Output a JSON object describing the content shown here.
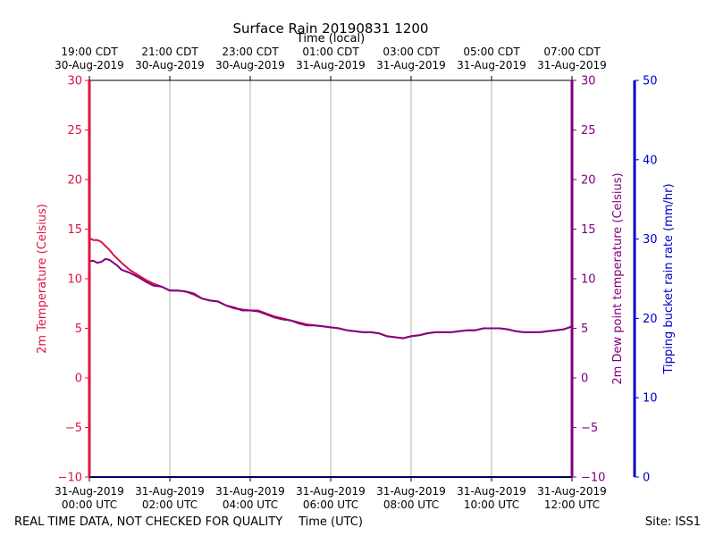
{
  "chart_data": {
    "type": "line",
    "title": "Surface Rain 20190831 1200",
    "top_axis_title": "Time (local)",
    "xlabel": "Time (UTC)",
    "ylabel_left": "2m Temperature (Celsius)",
    "ylabel_right_inner": "2m Dew point temperature (Celsius)",
    "ylabel_right_outer": "Tipping bucket rain rate (mm/hr)",
    "footer_left": "REAL TIME DATA, NOT CHECKED FOR QUALITY",
    "footer_right": "Site: ISS1",
    "xlim": [
      0,
      12
    ],
    "ylim": [
      -10,
      30
    ],
    "rain_ylim": [
      0,
      50
    ],
    "grid": "vertical",
    "y_ticks": [
      {
        "value": -10,
        "label": "−10"
      },
      {
        "value": -5,
        "label": "−5"
      },
      {
        "value": 0,
        "label": "0"
      },
      {
        "value": 5,
        "label": "5"
      },
      {
        "value": 10,
        "label": "10"
      },
      {
        "value": 15,
        "label": "15"
      },
      {
        "value": 20,
        "label": "20"
      },
      {
        "value": 25,
        "label": "25"
      },
      {
        "value": 30,
        "label": "30"
      }
    ],
    "rain_ticks": [
      {
        "value": 0,
        "label": "0"
      },
      {
        "value": 10,
        "label": "10"
      },
      {
        "value": 20,
        "label": "20"
      },
      {
        "value": 30,
        "label": "30"
      },
      {
        "value": 40,
        "label": "40"
      },
      {
        "value": 50,
        "label": "50"
      }
    ],
    "x_ticks_utc": [
      {
        "value": 0,
        "line1": "31-Aug-2019",
        "line2": "00:00 UTC"
      },
      {
        "value": 2,
        "line1": "31-Aug-2019",
        "line2": "02:00 UTC"
      },
      {
        "value": 4,
        "line1": "31-Aug-2019",
        "line2": "04:00 UTC"
      },
      {
        "value": 6,
        "line1": "31-Aug-2019",
        "line2": "06:00 UTC"
      },
      {
        "value": 8,
        "line1": "31-Aug-2019",
        "line2": "08:00 UTC"
      },
      {
        "value": 10,
        "line1": "31-Aug-2019",
        "line2": "10:00 UTC"
      },
      {
        "value": 12,
        "line1": "31-Aug-2019",
        "line2": "12:00 UTC"
      }
    ],
    "x_ticks_local": [
      {
        "value": 0,
        "line1": "19:00 CDT",
        "line2": "30-Aug-2019"
      },
      {
        "value": 2,
        "line1": "21:00 CDT",
        "line2": "30-Aug-2019"
      },
      {
        "value": 4,
        "line1": "23:00 CDT",
        "line2": "30-Aug-2019"
      },
      {
        "value": 6,
        "line1": "01:00 CDT",
        "line2": "31-Aug-2019"
      },
      {
        "value": 8,
        "line1": "03:00 CDT",
        "line2": "31-Aug-2019"
      },
      {
        "value": 10,
        "line1": "05:00 CDT",
        "line2": "31-Aug-2019"
      },
      {
        "value": 12,
        "line1": "07:00 CDT",
        "line2": "31-Aug-2019"
      }
    ],
    "series": [
      {
        "key": "temperature",
        "color": "#dc143c",
        "x": [
          0,
          0.1,
          0.2,
          0.3,
          0.4,
          0.5,
          0.6,
          0.7,
          0.8,
          1.0,
          1.2,
          1.4,
          1.6,
          1.8,
          2.0,
          2.2,
          2.4,
          2.6,
          2.8,
          3.0,
          3.2,
          3.4,
          3.6,
          3.8,
          4.0,
          4.2,
          4.4,
          4.6,
          4.8,
          5.0,
          5.2,
          5.4,
          5.6,
          5.8,
          6.0,
          6.2,
          6.4,
          6.6,
          6.8,
          7.0,
          7.2,
          7.4,
          7.6,
          7.8,
          8.0,
          8.2,
          8.4,
          8.6,
          8.8,
          9.0,
          9.2,
          9.4,
          9.6,
          9.8,
          10.0,
          10.2,
          10.4,
          10.6,
          10.8,
          11.0,
          11.2,
          11.4,
          11.6,
          11.8,
          12.0
        ],
        "values": [
          14.1,
          13.9,
          13.9,
          13.7,
          13.3,
          12.9,
          12.4,
          12.0,
          11.6,
          10.9,
          10.4,
          9.9,
          9.5,
          9.2,
          8.8,
          8.8,
          8.7,
          8.4,
          8.0,
          7.8,
          7.7,
          7.3,
          7.0,
          6.9,
          6.8,
          6.8,
          6.5,
          6.2,
          6.0,
          5.8,
          5.6,
          5.4,
          5.3,
          5.2,
          5.1,
          5.0,
          4.8,
          4.7,
          4.6,
          4.6,
          4.5,
          4.2,
          4.1,
          4.0,
          4.2,
          4.3,
          4.5,
          4.6,
          4.6,
          4.6,
          4.7,
          4.8,
          4.8,
          5.0,
          5.0,
          5.0,
          4.9,
          4.7,
          4.6,
          4.6,
          4.6,
          4.7,
          4.8,
          4.9,
          5.2
        ]
      },
      {
        "key": "dewpoint",
        "color": "#800080",
        "x": [
          0,
          0.1,
          0.2,
          0.3,
          0.4,
          0.5,
          0.6,
          0.7,
          0.8,
          1.0,
          1.2,
          1.4,
          1.6,
          1.8,
          2.0,
          2.2,
          2.4,
          2.6,
          2.8,
          3.0,
          3.2,
          3.4,
          3.6,
          3.8,
          4.0,
          4.2,
          4.4,
          4.6,
          4.8,
          5.0,
          5.2,
          5.4,
          5.6,
          5.8,
          6.0,
          6.2,
          6.4,
          6.6,
          6.8,
          7.0,
          7.2,
          7.4,
          7.6,
          7.8,
          8.0,
          8.2,
          8.4,
          8.6,
          8.8,
          9.0,
          9.2,
          9.4,
          9.6,
          9.8,
          10.0,
          10.2,
          10.4,
          10.6,
          10.8,
          11.0,
          11.2,
          11.4,
          11.6,
          11.8,
          12.0
        ],
        "values": [
          11.8,
          11.8,
          11.6,
          11.7,
          12.0,
          11.9,
          11.6,
          11.3,
          10.9,
          10.6,
          10.2,
          9.7,
          9.3,
          9.2,
          8.8,
          8.8,
          8.7,
          8.5,
          8.0,
          7.8,
          7.7,
          7.3,
          7.1,
          6.8,
          6.8,
          6.7,
          6.4,
          6.1,
          5.9,
          5.8,
          5.5,
          5.3,
          5.3,
          5.2,
          5.1,
          5.0,
          4.8,
          4.7,
          4.6,
          4.6,
          4.5,
          4.2,
          4.1,
          4.0,
          4.2,
          4.3,
          4.5,
          4.6,
          4.6,
          4.6,
          4.7,
          4.8,
          4.8,
          5.0,
          5.0,
          5.0,
          4.9,
          4.7,
          4.6,
          4.6,
          4.6,
          4.7,
          4.8,
          4.9,
          5.2
        ]
      },
      {
        "key": "rain_rate",
        "color": "#0000cc",
        "axis": "rain",
        "x": [
          0,
          12
        ],
        "values": [
          0,
          0
        ]
      }
    ]
  }
}
